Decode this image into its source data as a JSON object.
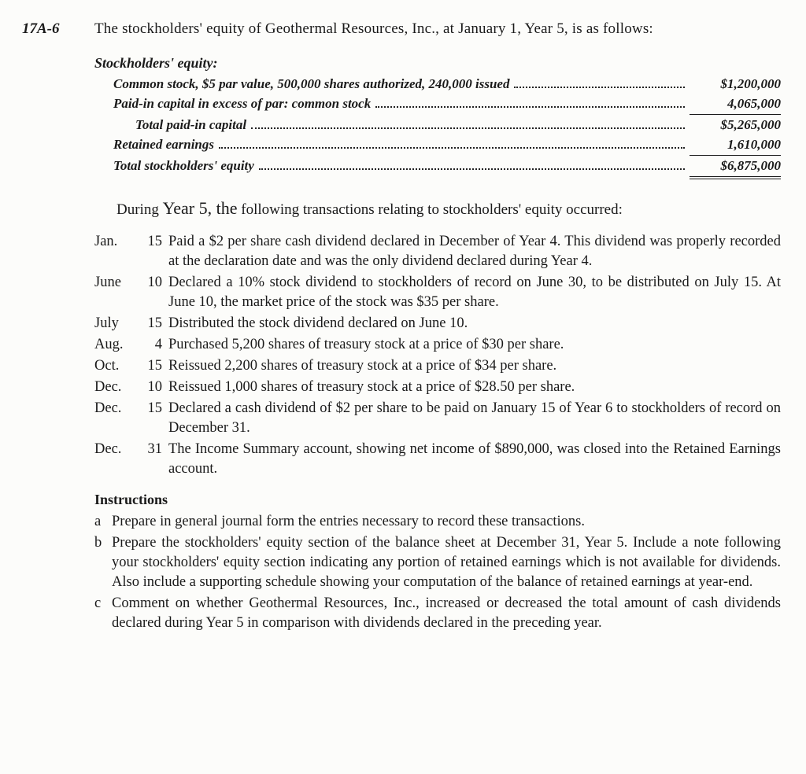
{
  "problem_number": "17A-6",
  "intro": "The stockholders' equity of Geothermal Resources, Inc., at January 1, Year 5, is as follows:",
  "equity": {
    "heading": "Stockholders' equity:",
    "lines": [
      {
        "label": "Common stock, $5 par value, 500,000 shares authorized, 240,000 issued",
        "value": "$1,200,000",
        "indent": 1,
        "rule": "none"
      },
      {
        "label": "Paid-in capital in excess of par: common stock",
        "value": "4,065,000",
        "indent": 1,
        "rule": "single"
      },
      {
        "label": "Total paid-in capital",
        "value": "$5,265,000",
        "indent": 2,
        "rule": "none"
      },
      {
        "label": "Retained earnings",
        "value": "1,610,000",
        "indent": 1,
        "rule": "single"
      },
      {
        "label": "Total stockholders' equity",
        "value": "$6,875,000",
        "indent": 1,
        "rule": "double"
      }
    ]
  },
  "during_prefix": "During ",
  "during_script": "Year 5, the",
  "during_suffix": " following transactions relating to stockholders' equity occurred:",
  "transactions": [
    {
      "month": "Jan.",
      "day": "15",
      "text": "Paid a $2 per share cash dividend declared in December of Year 4. This dividend was properly recorded at the declaration date and was the only dividend declared during Year 4."
    },
    {
      "month": "June",
      "day": "10",
      "text": "Declared a 10% stock dividend to stockholders of record on June 30, to be distributed on July 15. At June 10, the market price of the stock was $35 per share."
    },
    {
      "month": "July",
      "day": "15",
      "text": "Distributed the stock dividend declared on June 10."
    },
    {
      "month": "Aug.",
      "day": "4",
      "text": "Purchased 5,200 shares of treasury stock at a price of $30 per share."
    },
    {
      "month": "Oct.",
      "day": "15",
      "text": "Reissued 2,200 shares of treasury stock at a price of $34 per share."
    },
    {
      "month": "Dec.",
      "day": "10",
      "text": "Reissued 1,000 shares of treasury stock at a price of $28.50 per share."
    },
    {
      "month": "Dec.",
      "day": "15",
      "text": "Declared a cash dividend of $2 per share to be paid on January 15 of Year 6 to stockholders of record on December 31."
    },
    {
      "month": "Dec.",
      "day": "31",
      "text": "The Income Summary account, showing net income of $890,000, was closed into the Retained Earnings account."
    }
  ],
  "instructions_heading": "Instructions",
  "instructions": [
    {
      "letter": "a",
      "text": "Prepare in general journal form the entries necessary to record these transactions."
    },
    {
      "letter": "b",
      "text": "Prepare the stockholders' equity section of the balance sheet at December 31, Year 5. Include a note following your stockholders' equity section indicating any portion of retained earnings which is not available for dividends. Also include a supporting schedule showing your computation of the balance of retained earnings at year-end."
    },
    {
      "letter": "c",
      "text": "Comment on whether Geothermal Resources, Inc., increased or decreased the total amount of cash dividends declared during Year 5 in comparison with dividends declared in the preceding year."
    }
  ],
  "colors": {
    "text": "#1a1a1a",
    "background": "#fcfcfa"
  }
}
